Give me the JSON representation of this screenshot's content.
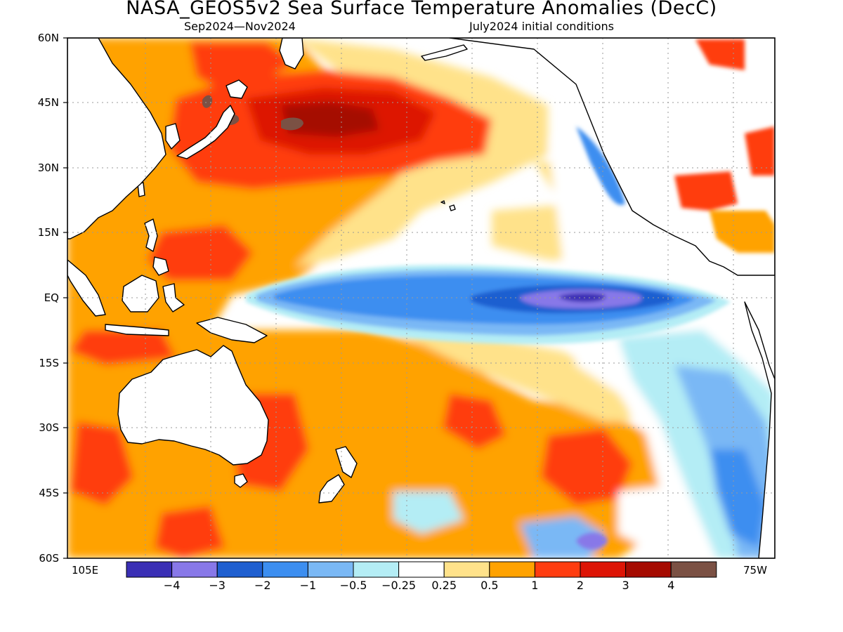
{
  "title": "NASA_GEOS5v2 Sea Surface Temperature Anomalies (DecC)",
  "subtitle_left": "Sep2024—Nov2024",
  "subtitle_right": "July2024 initial conditions",
  "lat_labels": [
    "60N",
    "45N",
    "30N",
    "15N",
    "EQ",
    "15S",
    "30S",
    "45S",
    "60S"
  ],
  "lon_labels": {
    "left": "105E",
    "right": "75W"
  },
  "colorbar": {
    "colors": [
      "#3a2fb5",
      "#8878e8",
      "#1f5fd0",
      "#3c8ef0",
      "#7ab8f5",
      "#b4edf5",
      "#ffffff",
      "#ffe28a",
      "#ffa200",
      "#ff3d10",
      "#dd1405",
      "#a50a00",
      "#7b5144"
    ],
    "labels": [
      "−4",
      "−3",
      "−2",
      "−1",
      "−0.5",
      "−0.25",
      "0.25",
      "0.5",
      "1",
      "2",
      "3",
      "4"
    ]
  }
}
